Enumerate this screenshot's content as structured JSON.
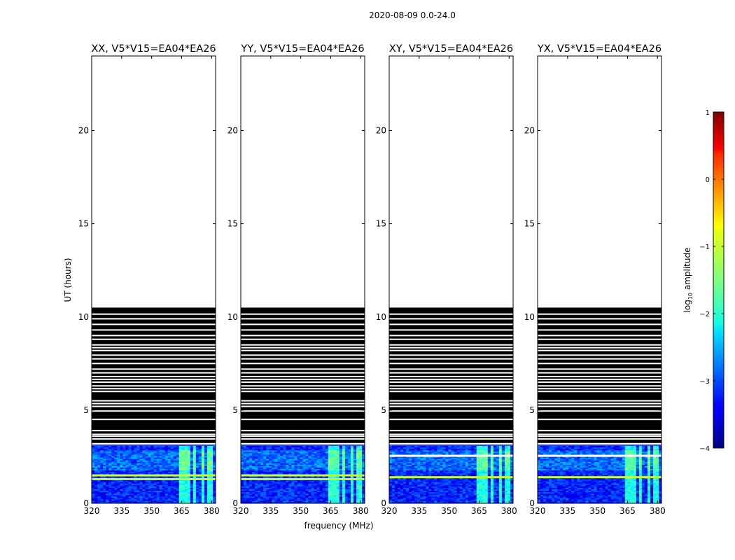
{
  "suptitle": "2020-08-09 0.0-24.0",
  "xlabel": "frequency (MHz)",
  "ylabel": "UT (hours)",
  "chart_data": {
    "type": "heatmap",
    "xlim": [
      320,
      382
    ],
    "ylim": [
      0,
      24
    ],
    "xticks": [
      320,
      335,
      350,
      365,
      380
    ],
    "yticks": [
      0,
      5,
      10,
      15,
      20
    ],
    "panels": [
      {
        "title": "XX, V5*V15=EA04*EA26",
        "hot_line_hours": [
          1.3,
          1.5
        ],
        "white_line_hours": []
      },
      {
        "title": "YY, V5*V15=EA04*EA26",
        "hot_line_hours": [
          1.3,
          1.5
        ],
        "white_line_hours": []
      },
      {
        "title": "XY, V5*V15=EA04*EA26",
        "hot_line_hours": [
          1.4
        ],
        "white_line_hours": [
          2.55
        ]
      },
      {
        "title": "YX, V5*V15=EA04*EA26",
        "hot_line_hours": [
          1.4
        ],
        "white_line_hours": [
          2.55
        ]
      }
    ],
    "data_end_hours": 10.5,
    "flagged_region_hours": [
      3.15,
      10.5
    ],
    "flagged_color": "#000000",
    "observed_region_hours": [
      0,
      3.1
    ],
    "gap_lines_hours": [
      3.2,
      3.45,
      3.6,
      3.7,
      3.9,
      4.5,
      4.95,
      5.2,
      5.35,
      5.5,
      6.0,
      6.15,
      6.3,
      6.5,
      6.65,
      6.8,
      7.0,
      7.2,
      7.5,
      7.75,
      7.95,
      8.2,
      8.35,
      8.5,
      8.8,
      9.0,
      9.3,
      9.6,
      9.9,
      10.15
    ],
    "rfi_bands_mhz": [
      [
        363.5,
        366
      ],
      [
        367.2,
        369
      ],
      [
        370.8,
        372.4
      ],
      [
        374.5,
        376.2
      ],
      [
        378.2,
        380.6
      ]
    ],
    "colorbar": {
      "label": "log10 amplitude",
      "min": -4,
      "max": 1,
      "ticks": [
        -4,
        -3,
        -2,
        -1,
        0,
        1
      ],
      "colormap": "jet"
    }
  }
}
